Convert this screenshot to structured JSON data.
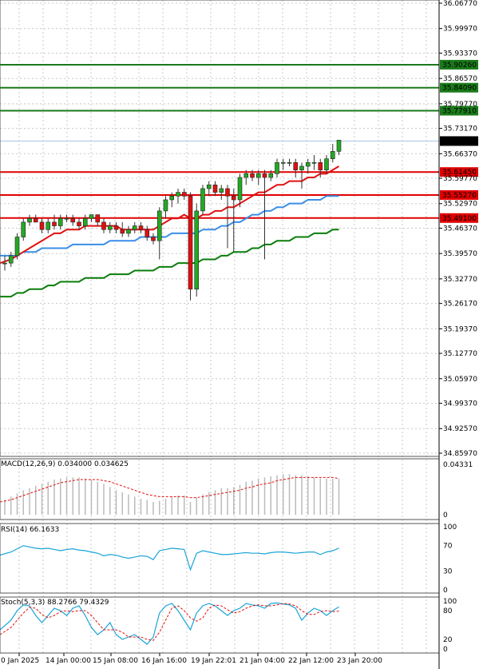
{
  "chart_data": [
    {
      "type": "candlestick",
      "name_panel": "price",
      "price_ticks": [
        "36.06770",
        "35.99970",
        "35.93370",
        "35.86570",
        "35.79770",
        "35.73170",
        "35.66370",
        "35.59770",
        "35.52970",
        "35.46370",
        "35.39570",
        "35.32770",
        "35.26170",
        "35.19370",
        "35.12770",
        "35.05970",
        "34.99370",
        "34.92570",
        "34.85970"
      ],
      "ylim": [
        34.8597,
        36.0677
      ],
      "x_labels": [
        "0 Jan 2025",
        "14 Jan 00:00",
        "15 Jan 08:00",
        "16 Jan 16:00",
        "19 Jan 22:01",
        "21 Jan 04:00",
        "22 Jan 12:00",
        "23 Jan 20:00"
      ],
      "current_price": "35.69764",
      "levels": [
        {
          "value": 35.9026,
          "label": "35.90260",
          "color": "#1a7a1a"
        },
        {
          "value": 35.8409,
          "label": "35.84090",
          "color": "#1a7a1a"
        },
        {
          "value": 35.7791,
          "label": "35.77910",
          "color": "#1a7a1a"
        },
        {
          "value": 35.6145,
          "label": "35.61450",
          "color": "#e00000"
        },
        {
          "value": 35.5527,
          "label": "35.55270",
          "color": "#e00000"
        },
        {
          "value": 35.491,
          "label": "35.49100",
          "color": "#e00000"
        }
      ],
      "candles": [
        [
          35.37,
          35.39,
          35.35,
          35.37
        ],
        [
          35.37,
          35.4,
          35.36,
          35.39
        ],
        [
          35.39,
          35.45,
          35.38,
          35.44
        ],
        [
          35.44,
          35.49,
          35.43,
          35.48
        ],
        [
          35.48,
          35.5,
          35.47,
          35.49
        ],
        [
          35.49,
          35.5,
          35.48,
          35.48
        ],
        [
          35.48,
          35.49,
          35.45,
          35.46
        ],
        [
          35.46,
          35.49,
          35.45,
          35.48
        ],
        [
          35.48,
          35.5,
          35.46,
          35.47
        ],
        [
          35.47,
          35.5,
          35.46,
          35.49
        ],
        [
          35.49,
          35.5,
          35.48,
          35.49
        ],
        [
          35.49,
          35.5,
          35.47,
          35.48
        ],
        [
          35.48,
          35.49,
          35.46,
          35.47
        ],
        [
          35.47,
          35.5,
          35.46,
          35.49
        ],
        [
          35.49,
          35.5,
          35.48,
          35.5
        ],
        [
          35.5,
          35.5,
          35.47,
          35.48
        ],
        [
          35.48,
          35.49,
          35.45,
          35.46
        ],
        [
          35.46,
          35.48,
          35.45,
          35.47
        ],
        [
          35.47,
          35.48,
          35.45,
          35.46
        ],
        [
          35.46,
          35.48,
          35.44,
          35.45
        ],
        [
          35.45,
          35.47,
          35.44,
          35.46
        ],
        [
          35.46,
          35.48,
          35.45,
          35.47
        ],
        [
          35.47,
          35.48,
          35.45,
          35.46
        ],
        [
          35.46,
          35.47,
          35.43,
          35.44
        ],
        [
          35.44,
          35.45,
          35.42,
          35.43
        ],
        [
          35.43,
          35.52,
          35.38,
          35.51
        ],
        [
          35.51,
          35.55,
          35.49,
          35.54
        ],
        [
          35.54,
          35.56,
          35.52,
          35.55
        ],
        [
          35.55,
          35.57,
          35.53,
          35.56
        ],
        [
          35.56,
          35.57,
          35.54,
          35.55
        ],
        [
          35.55,
          35.56,
          35.27,
          35.3
        ],
        [
          35.3,
          35.53,
          35.28,
          35.51
        ],
        [
          35.51,
          35.58,
          35.5,
          35.57
        ],
        [
          35.57,
          35.59,
          35.55,
          35.58
        ],
        [
          35.58,
          35.59,
          35.55,
          35.56
        ],
        [
          35.56,
          35.58,
          35.54,
          35.57
        ],
        [
          35.57,
          35.58,
          35.41,
          35.55
        ],
        [
          35.55,
          35.57,
          35.4,
          35.54
        ],
        [
          35.54,
          35.61,
          35.52,
          35.6
        ],
        [
          35.6,
          35.62,
          35.58,
          35.61
        ],
        [
          35.61,
          35.62,
          35.59,
          35.6
        ],
        [
          35.6,
          35.62,
          35.58,
          35.61
        ],
        [
          35.61,
          35.62,
          35.38,
          35.6
        ],
        [
          35.6,
          35.62,
          35.59,
          35.61
        ],
        [
          35.61,
          35.65,
          35.6,
          35.64
        ],
        [
          35.64,
          35.65,
          35.62,
          35.64
        ],
        [
          35.64,
          35.65,
          35.63,
          35.64
        ],
        [
          35.64,
          35.65,
          35.6,
          35.62
        ],
        [
          35.62,
          35.64,
          35.57,
          35.63
        ],
        [
          35.63,
          35.65,
          35.61,
          35.64
        ],
        [
          35.64,
          35.66,
          35.62,
          35.64
        ],
        [
          35.64,
          35.65,
          35.6,
          35.62
        ],
        [
          35.62,
          35.66,
          35.61,
          35.65
        ],
        [
          35.65,
          35.69,
          35.64,
          35.67
        ],
        [
          35.67,
          35.7,
          35.66,
          35.7
        ]
      ],
      "ma_red": [
        35.37,
        35.38,
        35.39,
        35.4,
        35.41,
        35.42,
        35.43,
        35.44,
        35.45,
        35.45,
        35.46,
        35.46,
        35.46,
        35.47,
        35.47,
        35.47,
        35.47,
        35.47,
        35.47,
        35.46,
        35.46,
        35.46,
        35.46,
        35.46,
        35.46,
        35.47,
        35.48,
        35.49,
        35.49,
        35.5,
        35.49,
        35.49,
        35.5,
        35.5,
        35.51,
        35.51,
        35.52,
        35.52,
        35.53,
        35.54,
        35.55,
        35.56,
        35.56,
        35.57,
        35.58,
        35.58,
        35.59,
        35.59,
        35.59,
        35.6,
        35.6,
        35.61,
        35.61,
        35.62,
        35.63
      ],
      "ma_blue": [
        35.39,
        35.39,
        35.39,
        35.4,
        35.4,
        35.4,
        35.41,
        35.41,
        35.41,
        35.41,
        35.41,
        35.42,
        35.42,
        35.42,
        35.42,
        35.42,
        35.42,
        35.43,
        35.43,
        35.43,
        35.43,
        35.43,
        35.44,
        35.44,
        35.44,
        35.44,
        35.44,
        35.45,
        35.45,
        35.45,
        35.45,
        35.45,
        35.46,
        35.46,
        35.46,
        35.47,
        35.47,
        35.48,
        35.48,
        35.49,
        35.5,
        35.5,
        35.51,
        35.51,
        35.52,
        35.52,
        35.53,
        35.53,
        35.53,
        35.54,
        35.54,
        35.54,
        35.55,
        35.55,
        35.55
      ],
      "ma_green": [
        35.28,
        35.28,
        35.29,
        35.29,
        35.3,
        35.3,
        35.3,
        35.31,
        35.31,
        35.32,
        35.32,
        35.32,
        35.32,
        35.33,
        35.33,
        35.33,
        35.33,
        35.34,
        35.34,
        35.34,
        35.34,
        35.35,
        35.35,
        35.35,
        35.35,
        35.36,
        35.36,
        35.36,
        35.37,
        35.37,
        35.37,
        35.37,
        35.38,
        35.38,
        35.38,
        35.39,
        35.39,
        35.4,
        35.4,
        35.4,
        35.41,
        35.41,
        35.42,
        35.42,
        35.43,
        35.43,
        35.43,
        35.44,
        35.44,
        35.44,
        35.45,
        35.45,
        35.45,
        35.46,
        35.46
      ]
    },
    {
      "type": "bar",
      "name_panel": "macd",
      "title": "MACD(12,26,9) 0.034000 0.034625",
      "ticks": [
        "0.04331",
        "0"
      ],
      "ylim": [
        0,
        0.048
      ],
      "histogram": [
        0.014,
        0.017,
        0.02,
        0.023,
        0.025,
        0.027,
        0.029,
        0.031,
        0.033,
        0.034,
        0.035,
        0.035,
        0.035,
        0.034,
        0.033,
        0.031,
        0.029,
        0.026,
        0.023,
        0.021,
        0.019,
        0.017,
        0.015,
        0.014,
        0.012,
        0.013,
        0.015,
        0.017,
        0.018,
        0.018,
        0.012,
        0.016,
        0.019,
        0.021,
        0.023,
        0.025,
        0.025,
        0.026,
        0.028,
        0.031,
        0.032,
        0.034,
        0.035,
        0.036,
        0.037,
        0.038,
        0.038,
        0.037,
        0.037,
        0.036,
        0.035,
        0.034,
        0.034,
        0.034,
        0.034
      ],
      "signal": [
        0.012,
        0.014,
        0.016,
        0.018,
        0.02,
        0.022,
        0.024,
        0.026,
        0.028,
        0.03,
        0.031,
        0.032,
        0.033,
        0.033,
        0.033,
        0.033,
        0.032,
        0.031,
        0.029,
        0.027,
        0.025,
        0.023,
        0.021,
        0.019,
        0.018,
        0.017,
        0.017,
        0.017,
        0.017,
        0.017,
        0.016,
        0.016,
        0.017,
        0.018,
        0.019,
        0.02,
        0.021,
        0.022,
        0.023,
        0.025,
        0.026,
        0.028,
        0.029,
        0.03,
        0.032,
        0.033,
        0.034,
        0.035,
        0.035,
        0.035,
        0.035,
        0.035,
        0.035,
        0.035,
        0.034
      ]
    },
    {
      "type": "line",
      "name_panel": "rsi",
      "title": "RSI(14) 66.1633",
      "ticks": [
        "100",
        "70",
        "30",
        "0"
      ],
      "ylim": [
        0,
        100
      ],
      "values": [
        55,
        60,
        65,
        70,
        68,
        66,
        65,
        66,
        64,
        62,
        64,
        65,
        63,
        62,
        60,
        58,
        54,
        56,
        55,
        52,
        50,
        52,
        54,
        53,
        48,
        62,
        64,
        66,
        65,
        64,
        32,
        58,
        62,
        60,
        58,
        56,
        56,
        57,
        58,
        59,
        58,
        58,
        57,
        59,
        60,
        60,
        59,
        58,
        59,
        60,
        60,
        56,
        60,
        62,
        66
      ]
    },
    {
      "type": "line",
      "name_panel": "stoch",
      "title": "Stoch(5,3,3) 88.2766 79.4329",
      "ticks": [
        "100",
        "80",
        "20",
        "0"
      ],
      "ylim": [
        0,
        100
      ],
      "k": [
        40,
        60,
        80,
        92,
        90,
        70,
        55,
        70,
        85,
        80,
        70,
        85,
        90,
        70,
        45,
        30,
        40,
        55,
        30,
        20,
        25,
        30,
        20,
        10,
        25,
        75,
        90,
        95,
        80,
        60,
        40,
        75,
        90,
        95,
        90,
        80,
        70,
        80,
        85,
        95,
        92,
        90,
        85,
        95,
        96,
        94,
        92,
        85,
        60,
        75,
        85,
        80,
        70,
        80,
        88
      ],
      "d": [
        30,
        45,
        60,
        75,
        87,
        85,
        72,
        65,
        70,
        78,
        80,
        78,
        80,
        80,
        70,
        55,
        40,
        40,
        40,
        35,
        25,
        25,
        25,
        20,
        18,
        35,
        60,
        85,
        90,
        80,
        65,
        58,
        65,
        85,
        92,
        90,
        82,
        75,
        78,
        85,
        90,
        92,
        90,
        90,
        92,
        95,
        94,
        90,
        80,
        72,
        72,
        78,
        80,
        78,
        79
      ]
    }
  ]
}
